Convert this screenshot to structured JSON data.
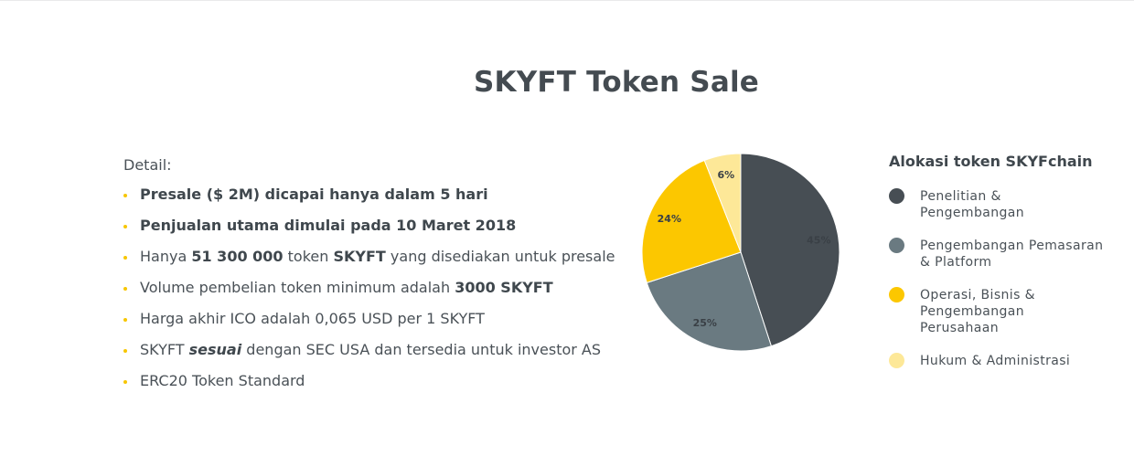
{
  "title": "SKYFT Token Sale",
  "details": {
    "label": "Detail:",
    "items": [
      {
        "parts": [
          {
            "t": "Presale ($ 2M) dicapai hanya dalam 5 hari",
            "b": true
          }
        ]
      },
      {
        "parts": [
          {
            "t": "Penjualan utama dimulai pada 10 Maret 2018",
            "b": true
          }
        ]
      },
      {
        "parts": [
          {
            "t": "Hanya "
          },
          {
            "t": "51 300 000",
            "b": true
          },
          {
            "t": " token "
          },
          {
            "t": "SKYFT",
            "b": true
          },
          {
            "t": " yang disediakan untuk presale"
          }
        ]
      },
      {
        "parts": [
          {
            "t": "Volume pembelian token minimum adalah "
          },
          {
            "t": "3000 SKYFT",
            "b": true
          }
        ]
      },
      {
        "parts": [
          {
            "t": "Harga akhir ICO adalah 0,065 USD per 1 SKYFT"
          }
        ]
      },
      {
        "parts": [
          {
            "t": "SKYFT "
          },
          {
            "t": "sesuai",
            "b": true,
            "i": true
          },
          {
            "t": " dengan SEC USA dan tersedia untuk investor AS"
          }
        ]
      },
      {
        "parts": [
          {
            "t": "ERC20 Token Standard"
          }
        ]
      }
    ]
  },
  "chart_data": {
    "type": "pie",
    "title": "Alokasi token SKYFchain",
    "legend_position": "right",
    "slices": [
      {
        "label": "Penelitian & Pengembangan",
        "value": 45,
        "display": "45%",
        "color": "#474e54"
      },
      {
        "label": "Pengembangan Pemasaran & Platform",
        "value": 25,
        "display": "25%",
        "color": "#6a7a81"
      },
      {
        "label": "Operasi, Bisnis & Pengembangan Perusahaan",
        "value": 24,
        "display": "24%",
        "color": "#fcc700"
      },
      {
        "label": "Hukum & Administrasi",
        "value": 6,
        "display": "6%",
        "color": "#fde898"
      }
    ]
  }
}
